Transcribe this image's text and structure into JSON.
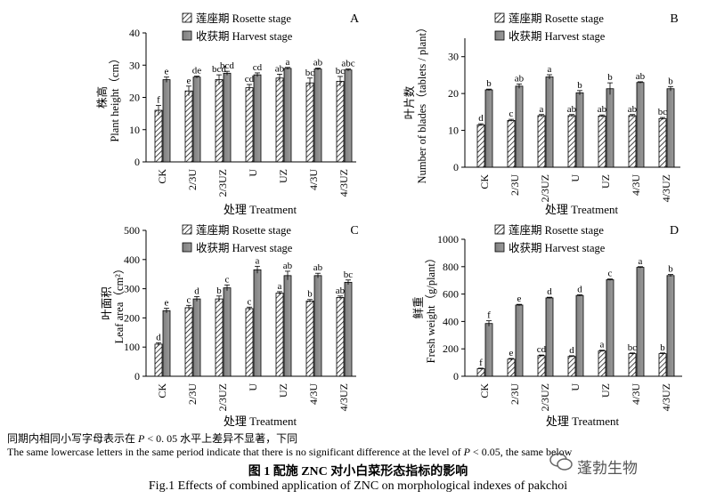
{
  "chart_data": [
    {
      "type": "bar",
      "panel_letter": "A",
      "categories": [
        "CK",
        "2/3U",
        "2/3UZ",
        "U",
        "UZ",
        "4/3U",
        "4/3UZ"
      ],
      "ylabel_cn": "株高",
      "ylabel_en": "Plant height（cm）",
      "xlabel": "处理 Treatment",
      "ylim": [
        0,
        40
      ],
      "yticks": [
        0,
        10,
        20,
        30,
        40
      ],
      "series": [
        {
          "name": "莲座期 Rosette stage",
          "values": [
            16,
            22,
            25.5,
            23,
            26,
            24.5,
            25
          ],
          "errors": [
            1.5,
            1.5,
            1.5,
            1.0,
            1.2,
            1.5,
            1.5
          ],
          "letters": [
            "f",
            "e",
            "bcd",
            "cd",
            "ab",
            "bc",
            "bc"
          ]
        },
        {
          "name": "收获期 Harvest stage",
          "values": [
            25.5,
            26.3,
            27.5,
            27,
            29,
            28.8,
            28.5
          ],
          "errors": [
            0.8,
            0.3,
            0.6,
            0.6,
            0.3,
            0.3,
            0.3
          ],
          "letters": [
            "e",
            "de",
            "bcd",
            "cd",
            "a",
            "ab",
            "abc"
          ]
        }
      ]
    },
    {
      "type": "bar",
      "panel_letter": "B",
      "categories": [
        "CK",
        "2/3U",
        "2/3UZ",
        "U",
        "UZ",
        "4/3U",
        "4/3UZ"
      ],
      "ylabel_cn": "叶片数",
      "ylabel_en": "Number of blades（tablets / plant）",
      "xlabel": "处理 Treatment",
      "ylim": [
        0,
        35
      ],
      "yticks": [
        0,
        10,
        20,
        30
      ],
      "series": [
        {
          "name": "莲座期 Rosette stage",
          "values": [
            11.5,
            12.7,
            14,
            14,
            13.9,
            14,
            13.2
          ],
          "errors": [
            0.3,
            0.3,
            0.3,
            0.3,
            0.3,
            0.3,
            0.3
          ],
          "letters": [
            "d",
            "c",
            "a",
            "ab",
            "ab",
            "ab",
            "bc"
          ]
        },
        {
          "name": "收获期 Harvest stage",
          "values": [
            21,
            22,
            24.5,
            20.2,
            21.3,
            23,
            21.3
          ],
          "errors": [
            0.2,
            0.6,
            0.6,
            0.6,
            1.6,
            0.2,
            0.6
          ],
          "letters": [
            "b",
            "ab",
            "a",
            "b",
            "b",
            "ab",
            "b"
          ]
        }
      ]
    },
    {
      "type": "bar",
      "panel_letter": "C",
      "categories": [
        "CK",
        "2/3U",
        "2/3UZ",
        "U",
        "UZ",
        "4/3U",
        "4/3UZ"
      ],
      "ylabel_cn": "叶面积",
      "ylabel_en": "Leaf area（cm²）",
      "xlabel": "处理 Treatment",
      "ylim": [
        0,
        500
      ],
      "yticks": [
        0,
        100,
        200,
        300,
        400,
        500
      ],
      "series": [
        {
          "name": "莲座期 Rosette stage",
          "values": [
            110,
            235,
            265,
            232,
            285,
            258,
            270
          ],
          "errors": [
            5,
            8,
            10,
            5,
            5,
            5,
            5
          ],
          "letters": [
            "d",
            "c",
            "b",
            "c",
            "a",
            "b",
            "ab"
          ]
        },
        {
          "name": "收获期 Harvest stage",
          "values": [
            225,
            265,
            303,
            365,
            345,
            345,
            322
          ],
          "errors": [
            8,
            8,
            10,
            12,
            15,
            8,
            8
          ],
          "letters": [
            "e",
            "d",
            "c",
            "a",
            "ab",
            "ab",
            "bc"
          ]
        }
      ]
    },
    {
      "type": "bar",
      "panel_letter": "D",
      "categories": [
        "CK",
        "2/3U",
        "2/3UZ",
        "U",
        "UZ",
        "4/3U",
        "4/3UZ"
      ],
      "ylabel_cn": "鲜重",
      "ylabel_en": "Fresh weight（g/plant）",
      "xlabel": "处理 Treatment",
      "ylim": [
        0,
        1000
      ],
      "yticks": [
        0,
        200,
        400,
        600,
        800,
        1000
      ],
      "series": [
        {
          "name": "莲座期 Rosette stage",
          "values": [
            55,
            125,
            150,
            145,
            185,
            165,
            165
          ],
          "errors": [
            4,
            5,
            5,
            5,
            5,
            5,
            5
          ],
          "letters": [
            "f",
            "e",
            "cd",
            "d",
            "a",
            "bc",
            "b"
          ]
        },
        {
          "name": "收获期 Harvest stage",
          "values": [
            385,
            520,
            572,
            590,
            705,
            795,
            735
          ],
          "errors": [
            20,
            5,
            5,
            5,
            5,
            5,
            8
          ],
          "letters": [
            "f",
            "e",
            "d",
            "d",
            "c",
            "a",
            "b"
          ]
        }
      ]
    }
  ],
  "notes": {
    "cn_prefix": "同期内相同小写字母表示在",
    "cn_p": "P",
    "cn_suffix": "< 0. 05 水平上差异不显著，下同",
    "en_prefix": "The same lowercase letters in the same period indicate that there is no significant difference at the level of",
    "en_p": "P",
    "en_suffix": "< 0.05, the same below"
  },
  "caption": {
    "cn": "图 1   配施 ZNC 对小白菜形态指标的影响",
    "en": "Fig.1    Effects of combined application of ZNC on morphological indexes of pakchoi"
  },
  "watermark": "蓬勃生物"
}
